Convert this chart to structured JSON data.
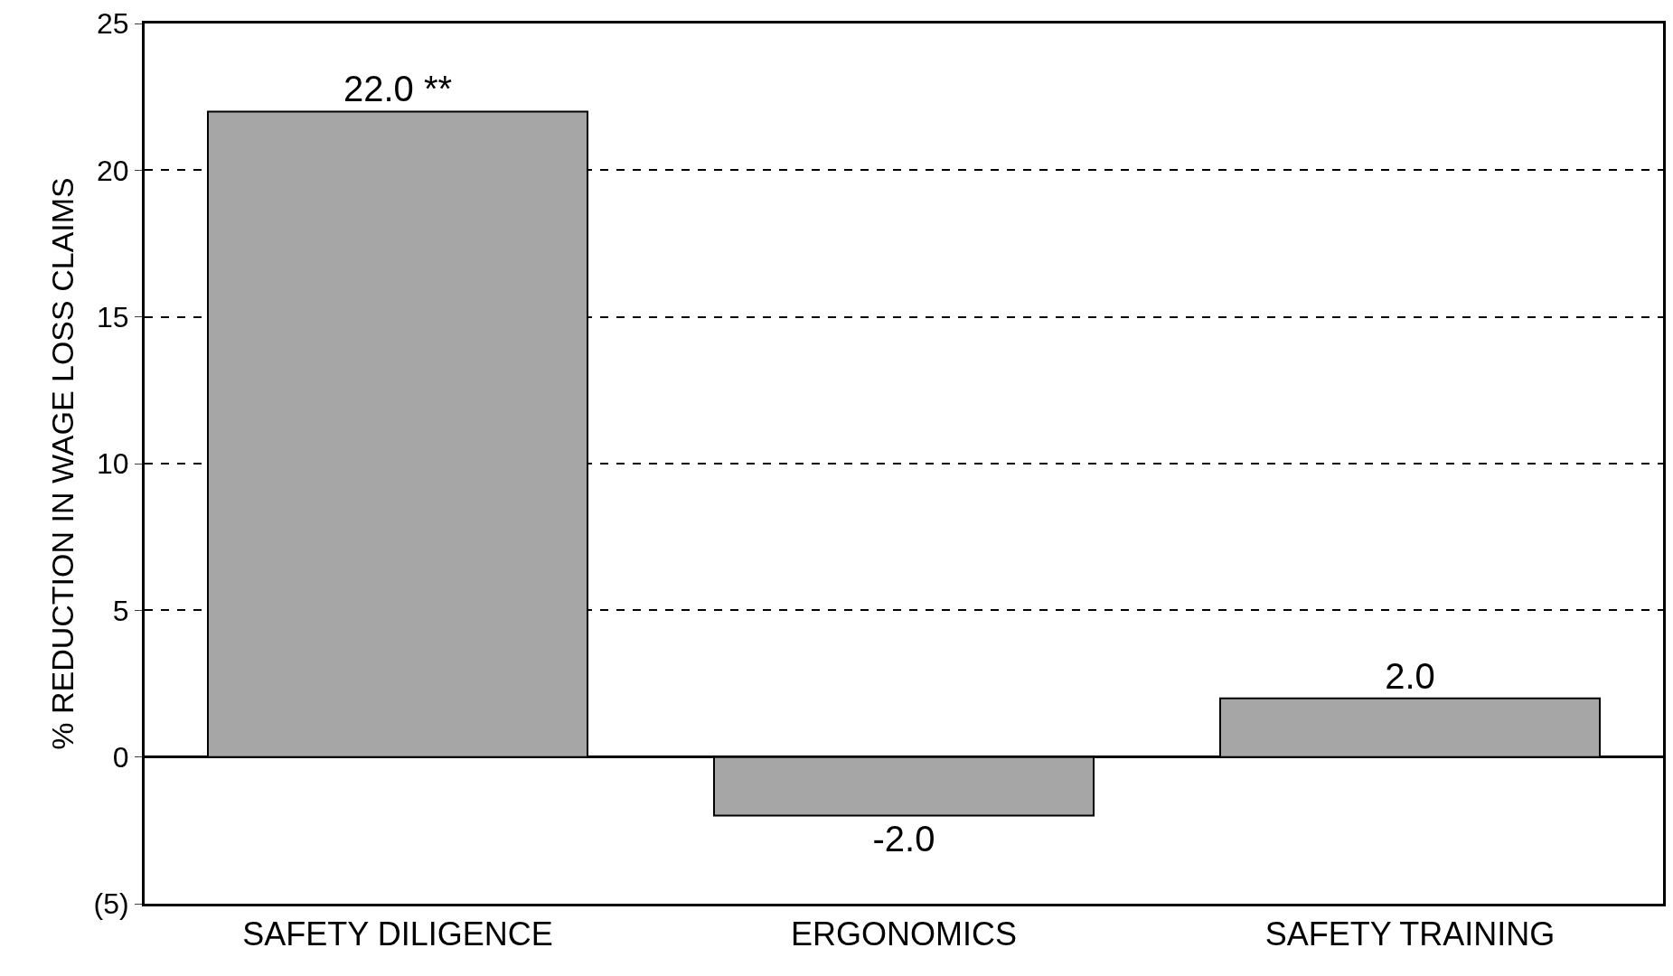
{
  "chart_data": {
    "type": "bar",
    "ylabel": "% REDUCTION IN WAGE LOSS CLAIMS",
    "categories": [
      "SAFETY DILIGENCE",
      "ERGONOMICS",
      "SAFETY TRAINING"
    ],
    "values": [
      22.0,
      -2.0,
      2.0
    ],
    "value_labels": [
      "22.0 **",
      "-2.0",
      "2.0"
    ],
    "color": "#a6a6a6",
    "ylim": [
      -5,
      25
    ],
    "yticks": [
      {
        "value": -5,
        "label": "(5)"
      },
      0,
      5,
      10,
      15,
      20,
      25
    ],
    "grid": "y",
    "legend": false
  }
}
